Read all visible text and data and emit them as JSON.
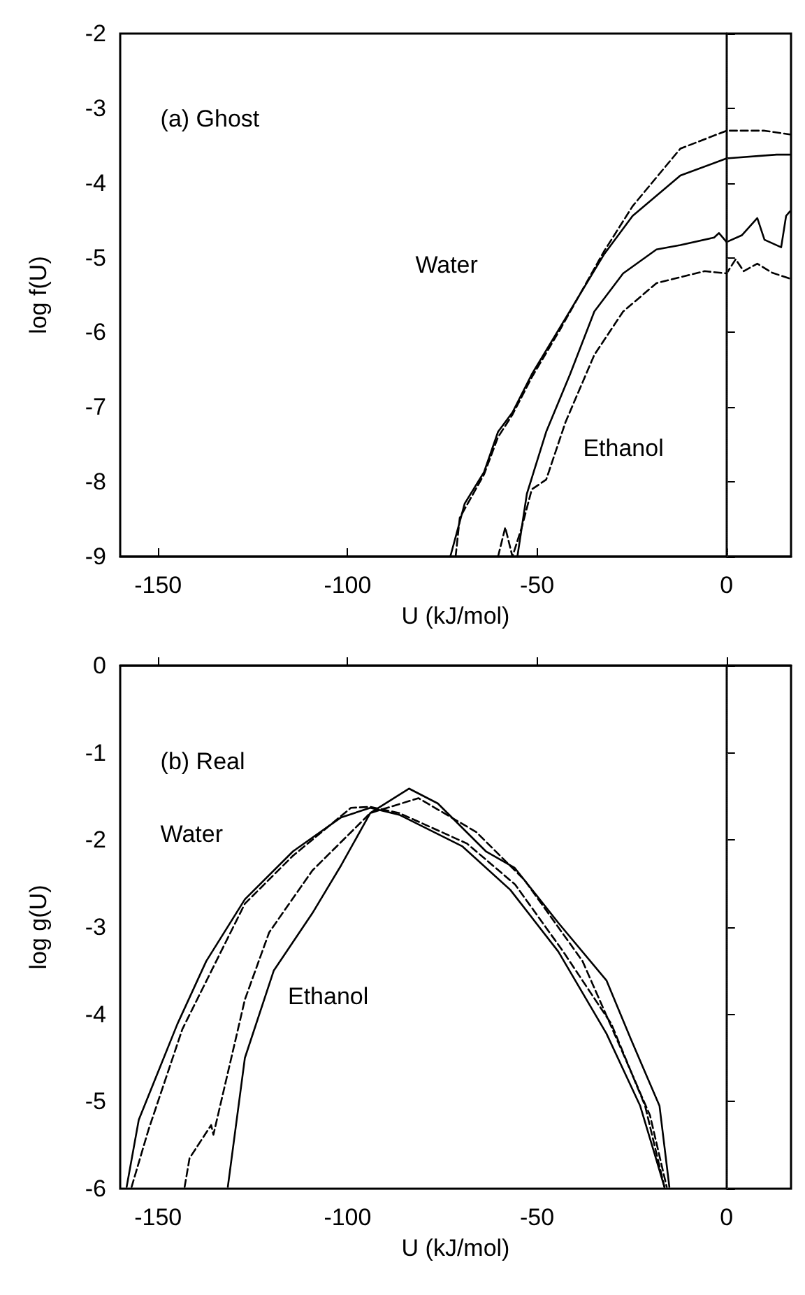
{
  "chart_data": [
    {
      "type": "line",
      "ylabel": "log f(U)",
      "xlabel": "U (kJ/mol)",
      "xlim": [
        -160,
        17
      ],
      "xticks": [
        -150,
        -100,
        -50,
        0
      ],
      "ylim": [
        -9,
        -2
      ],
      "yticks": [
        -9,
        -8,
        -7,
        -6,
        -5,
        -4,
        -3,
        -2
      ],
      "grid": false,
      "marker": "none",
      "ref_lines": [
        {
          "axis": "x",
          "value": 0,
          "line_style": "dotted",
          "color": "#555555"
        }
      ],
      "annotations": [
        "(a) Ghost",
        "Water",
        "Ethanol"
      ],
      "series": [
        {
          "color": "#000000",
          "line_style": "solid",
          "x": [
            -72.9,
            -69.1,
            -64,
            -60.3,
            -56.5,
            -51.4,
            -43.8,
            -32.4,
            -24.8,
            -12.2,
            0,
            13.2,
            16.7
          ],
          "values": [
            -9,
            -8.29,
            -7.87,
            -7.33,
            -7.07,
            -6.56,
            -5.92,
            -4.96,
            -4.44,
            -3.9,
            -3.67,
            -3.62,
            -3.62
          ]
        },
        {
          "color": "#000000",
          "line_style": "dashed",
          "x": [
            -71.5,
            -70.4,
            -64,
            -60.3,
            -56.5,
            -51.4,
            -43.8,
            -32.4,
            -24.8,
            -12.2,
            0,
            10,
            16.7
          ],
          "values": [
            -9,
            -8.48,
            -7.9,
            -7.4,
            -7.1,
            -6.6,
            -5.95,
            -4.92,
            -4.31,
            -3.54,
            -3.3,
            -3.3,
            -3.35
          ]
        },
        {
          "color": "#000000",
          "line_style": "solid",
          "x": [
            -55.2,
            -52.7,
            -47.6,
            -41.3,
            -34.9,
            -27.3,
            -18.5,
            -12.2,
            -3.3,
            -2,
            0,
            4,
            8.1,
            10,
            14.4,
            15.7,
            16.7
          ],
          "values": [
            -9,
            -8.16,
            -7.33,
            -6.56,
            -5.72,
            -5.21,
            -4.89,
            -4.83,
            -4.73,
            -4.67,
            -4.79,
            -4.7,
            -4.47,
            -4.76,
            -4.86,
            -4.44,
            -4.38
          ]
        },
        {
          "color": "#000000",
          "line_style": "dashed",
          "x": [
            -60.3,
            -58.4,
            -56.5,
            -54,
            -51.4,
            -47.6,
            -42.5,
            -34.9,
            -27.3,
            -18.5,
            -5.8,
            0,
            2.4,
            4.5,
            8.1,
            12,
            16.7
          ],
          "values": [
            -9,
            -8.61,
            -9,
            -8.6,
            -8.1,
            -7.97,
            -7.2,
            -6.3,
            -5.72,
            -5.34,
            -5.18,
            -5.21,
            -5.02,
            -5.18,
            -5.08,
            -5.2,
            -5.28
          ]
        }
      ]
    },
    {
      "type": "line",
      "ylabel": "log g(U)",
      "xlabel": "U (kJ/mol)",
      "xlim": [
        -160,
        17
      ],
      "xticks": [
        -150,
        -100,
        -50,
        0
      ],
      "ylim": [
        -6,
        0
      ],
      "yticks": [
        -6,
        -5,
        -4,
        -3,
        -2,
        -1,
        0
      ],
      "grid": false,
      "marker": "none",
      "ref_lines": [
        {
          "axis": "x",
          "value": 0,
          "line_style": "dotted",
          "color": "#555555"
        }
      ],
      "annotations": [
        "(b) Real",
        "Water",
        "Ethanol"
      ],
      "series": [
        {
          "color": "#000000",
          "line_style": "solid",
          "x": [
            -158.3,
            -155.1,
            -144.9,
            -137.3,
            -127.1,
            -114.4,
            -101.7,
            -94,
            -86.4,
            -69.8,
            -57.1,
            -44.4,
            -31.7,
            -22.8,
            -19,
            -16.4
          ],
          "values": [
            -5.98,
            -5.21,
            -4.11,
            -3.39,
            -2.68,
            -2.13,
            -1.74,
            -1.63,
            -1.71,
            -2.07,
            -2.57,
            -3.28,
            -4.22,
            -5.05,
            -5.6,
            -5.98
          ]
        },
        {
          "color": "#000000",
          "line_style": "dashed",
          "x": [
            -157,
            -152.5,
            -143.6,
            -127.1,
            -114.4,
            -99.1,
            -94,
            -86.4,
            -68.5,
            -55.8,
            -43.1,
            -30.4,
            -21.5,
            -16.4
          ],
          "values": [
            -5.98,
            -5.32,
            -4.17,
            -2.73,
            -2.18,
            -1.63,
            -1.62,
            -1.69,
            -2.04,
            -2.51,
            -3.28,
            -4.11,
            -5.05,
            -5.98
          ]
        },
        {
          "color": "#000000",
          "line_style": "solid",
          "x": [
            -131.6,
            -127.1,
            -119.5,
            -109.3,
            -101.7,
            -94,
            -83.8,
            -76.2,
            -63.5,
            -55.9,
            -44.4,
            -31.7,
            -25.3,
            -17.7,
            -15.1
          ],
          "values": [
            -5.98,
            -4.5,
            -3.5,
            -2.84,
            -2.29,
            -1.69,
            -1.41,
            -1.58,
            -2.13,
            -2.32,
            -2.95,
            -3.61,
            -4.28,
            -5.05,
            -5.98
          ]
        },
        {
          "color": "#000000",
          "line_style": "dashed",
          "x": [
            -143,
            -141.7,
            -136,
            -135.4,
            -127.1,
            -120.7,
            -109.3,
            -94,
            -81.3,
            -66,
            -53.3,
            -38,
            -27.9,
            -20.2,
            -15.8
          ],
          "values": [
            -5.98,
            -5.65,
            -5.27,
            -5.38,
            -3.83,
            -3.06,
            -2.35,
            -1.69,
            -1.52,
            -1.91,
            -2.46,
            -3.39,
            -4.39,
            -5.16,
            -5.98
          ]
        }
      ]
    }
  ]
}
